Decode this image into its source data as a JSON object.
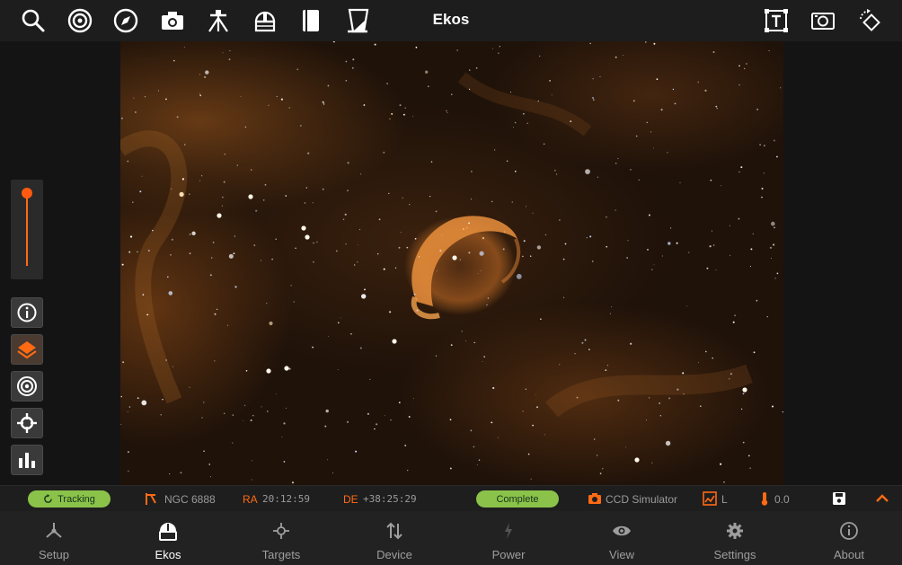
{
  "app": {
    "title": "Ekos"
  },
  "toolbar": {
    "left_icons": [
      "search-icon",
      "target-icon",
      "compass-icon",
      "camera-icon",
      "tripod-icon",
      "observatory-icon",
      "notebook-icon",
      "flat-panel-icon"
    ],
    "right_icons": [
      "text-frame-icon",
      "capture-frame-icon",
      "rotate-icon"
    ]
  },
  "side_tools": [
    "info-icon",
    "layers-icon",
    "target-icon",
    "crosshair-icon",
    "histogram-icon"
  ],
  "status": {
    "tracking_label": "Tracking",
    "target_name": "NGC 6888",
    "ra_label": "RA",
    "ra_value": "20:12:59",
    "de_label": "DE",
    "de_value": "+38:25:29",
    "capture_status": "Complete",
    "camera_name": "CCD Simulator",
    "filter": "L",
    "temperature": "0.0"
  },
  "nav": {
    "items": [
      {
        "label": "Setup",
        "icon": "setup-icon"
      },
      {
        "label": "Ekos",
        "icon": "ekos-icon"
      },
      {
        "label": "Targets",
        "icon": "targets-icon"
      },
      {
        "label": "Device",
        "icon": "device-icon"
      },
      {
        "label": "Power",
        "icon": "power-icon"
      },
      {
        "label": "View",
        "icon": "eye-icon"
      },
      {
        "label": "Settings",
        "icon": "gear-icon"
      },
      {
        "label": "About",
        "icon": "about-icon"
      }
    ],
    "active": "Ekos"
  },
  "colors": {
    "accent": "#ff6a13",
    "status_green": "#8bc34a",
    "toolbar_bg": "#1d1d1d",
    "nav_bg": "#222222"
  }
}
